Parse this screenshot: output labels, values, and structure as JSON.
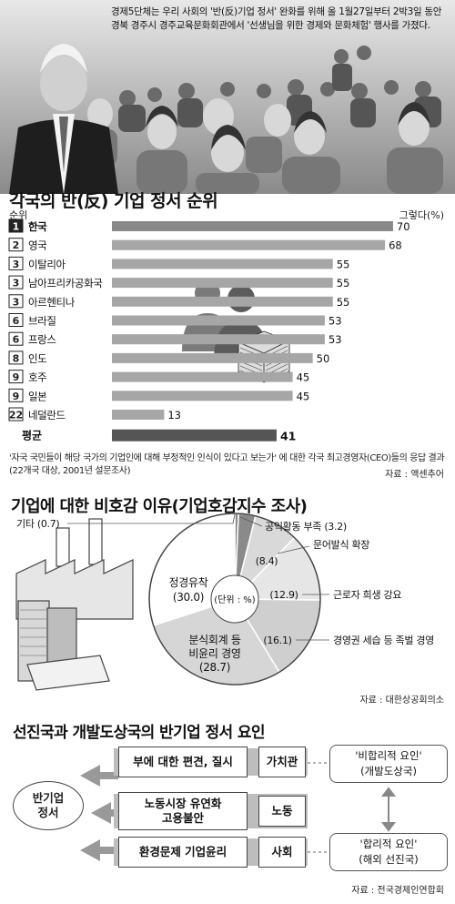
{
  "photo": {
    "caption": "경제5단체는 우리 사회의 '반(反)기업 정서' 완화를 위해 올 1월27일부터 2박3일 동안 경북 경주시 경주교육문화회관에서 '선생님을 위한 경제와 문화체험' 행사를 가졌다."
  },
  "bar_section": {
    "title": "각국의 반(反) 기업 정서 순위",
    "rank_label": "순위",
    "unit_label": "그렇다(%)",
    "note": "'자국 국민들이 해당 국가의 기업인에 대해 부정적인 인식이 있다고 보는가' 에 대한 각국 최고경영자(CEO)들의 응답 결과(22개국 대상, 2001년 설문조사)",
    "source": "자료 : 액센추어"
  },
  "pie_section": {
    "title": "기업에 대한 비호감 이유(기업호감지수 조사)",
    "unit": "(단위 : %)",
    "source": "자료 : 대한상공회의소"
  },
  "diagram": {
    "title": "선진국과 개발도상국의 반기업 정서 요인",
    "center": [
      "반기업",
      "정서"
    ],
    "rows": [
      {
        "factor": "부에 대한 편견, 질시",
        "category": "가치관"
      },
      {
        "factor": "노동시장 유연화\n고용불안",
        "category": "노동"
      },
      {
        "factor": "환경문제 기업윤리",
        "category": "사회"
      }
    ],
    "side_top": {
      "title": "'비합리적 요인'",
      "sub": "(개발도상국)"
    },
    "side_bottom": {
      "title": "'합리적 요인'",
      "sub": "(해외 선진국)"
    },
    "source": "자료 : 전국경제인연합회"
  },
  "chart_data": [
    {
      "type": "bar",
      "title": "각국의 반(反) 기업 정서 순위",
      "ylabel": "그렇다(%)",
      "xlim": [
        0,
        75
      ],
      "categories": [
        "한국",
        "영국",
        "이탈리아",
        "남아프리카공화국",
        "아르헨티나",
        "브라질",
        "프랑스",
        "인도",
        "호주",
        "일본",
        "네덜란드"
      ],
      "ranks": [
        "1",
        "2",
        "3",
        "3",
        "3",
        "6",
        "6",
        "8",
        "9",
        "9",
        "22"
      ],
      "values": [
        70,
        68,
        55,
        55,
        55,
        53,
        53,
        50,
        45,
        45,
        13
      ],
      "average_label": "평균",
      "average_value": 41,
      "colors": {
        "bar": "#a6a6a6",
        "first_bar": "#888888",
        "average": "#555555"
      }
    },
    {
      "type": "pie",
      "title": "기업에 대한 비호감 이유(기업호감지수 조사)",
      "unit": "(단위 : %)",
      "slices": [
        {
          "label": "기타",
          "value": 0.7,
          "value_label": "(0.7)"
        },
        {
          "label": "공익활동 부족",
          "value": 3.2,
          "value_label": "(3.2)"
        },
        {
          "label": "문어발식 확장",
          "value": 8.4,
          "value_label": "(8.4)"
        },
        {
          "label": "근로자 희생 강요",
          "value": 12.9,
          "value_label": "(12.9)"
        },
        {
          "label": "경영권 세습 등 족벌 경영",
          "value": 16.1,
          "value_label": "(16.1)"
        },
        {
          "label": "분식회계 등 비윤리 경영",
          "value": 28.7,
          "value_label": "(28.7)"
        },
        {
          "label": "정경유착",
          "value": 30.0,
          "value_label": "(30.0)"
        }
      ]
    }
  ]
}
